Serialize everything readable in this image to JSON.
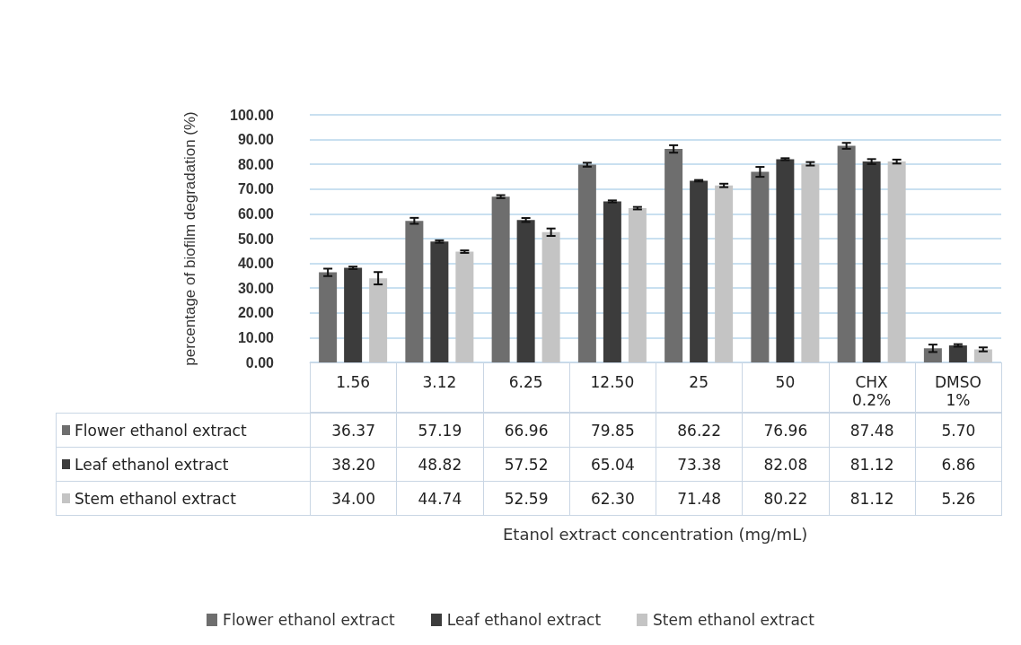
{
  "chart_data": {
    "type": "bar",
    "ylabel": "percentage of biofilm degradation (%)",
    "annotations": [
      "Etanol extract concentration (mg/mL)"
    ],
    "categories": [
      "1.56",
      "3.12",
      "6.25",
      "12.50",
      "25",
      "50",
      "CHX\n0.2%",
      "DMSO\n1%"
    ],
    "ylim": [
      0,
      100
    ],
    "yticks": [
      {
        "value": 0,
        "label": "0.00"
      },
      {
        "value": 10,
        "label": "10.00"
      },
      {
        "value": 20,
        "label": "20.00"
      },
      {
        "value": 30,
        "label": "30.00"
      },
      {
        "value": 40,
        "label": "40.00"
      },
      {
        "value": 50,
        "label": "50.00"
      },
      {
        "value": 60,
        "label": "60.00"
      },
      {
        "value": 70,
        "label": "70.00"
      },
      {
        "value": 80,
        "label": "80.00"
      },
      {
        "value": 90,
        "label": "90.00"
      },
      {
        "value": 100,
        "label": "100.00"
      }
    ],
    "grid": "y",
    "legend": "bottom",
    "series": [
      {
        "name": "Flower ethanol extract",
        "color": "#6e6e6e",
        "values": [
          36.37,
          57.19,
          66.96,
          79.85,
          86.22,
          76.96,
          87.48,
          5.7
        ],
        "value_labels": [
          "36.37",
          "57.19",
          "66.96",
          "79.85",
          "86.22",
          "76.96",
          "87.48",
          "5.70"
        ],
        "errors": [
          1.5,
          1.2,
          0.6,
          0.8,
          1.5,
          2,
          1.2,
          1.5
        ]
      },
      {
        "name": "Leaf ethanol extract",
        "color": "#3c3c3c",
        "values": [
          38.2,
          48.82,
          57.52,
          65.04,
          73.38,
          82.08,
          81.12,
          6.86
        ],
        "value_labels": [
          "38.20",
          "48.82",
          "57.52",
          "65.04",
          "73.38",
          "82.08",
          "81.12",
          "6.86"
        ],
        "errors": [
          0.5,
          0.5,
          0.8,
          0.4,
          0.3,
          0.4,
          1,
          0.5
        ]
      },
      {
        "name": "Stem ethanol extract",
        "color": "#c4c4c4",
        "values": [
          34.0,
          44.74,
          52.59,
          62.3,
          71.48,
          80.22,
          81.12,
          5.26
        ],
        "value_labels": [
          "34.00",
          "44.74",
          "52.59",
          "62.30",
          "71.48",
          "80.22",
          "81.12",
          "5.26"
        ],
        "errors": [
          2.5,
          0.5,
          1.5,
          0.5,
          0.7,
          0.7,
          0.8,
          0.8
        ]
      }
    ]
  }
}
